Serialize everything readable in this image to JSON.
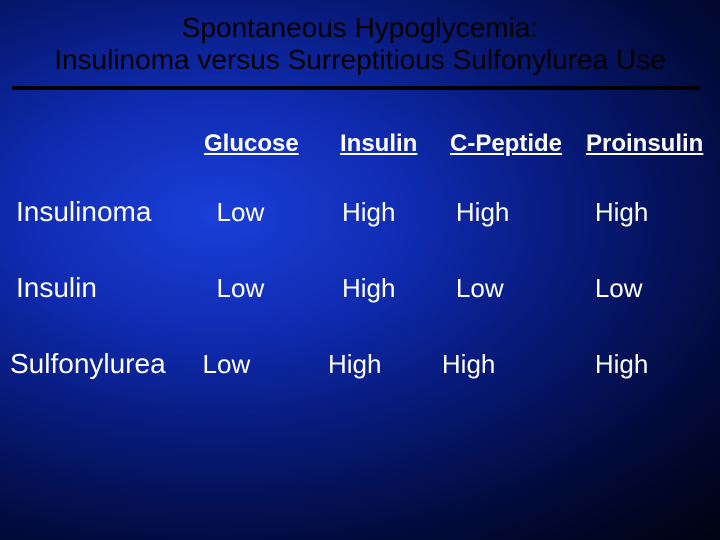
{
  "slide": {
    "title_line1": "Spontaneous Hypoglycemia:",
    "title_line2": "Insulinoma versus Surreptitious Sulfonylurea Use",
    "background_gradient_colors": [
      "#1a3fd8",
      "#0f2bb0",
      "#071a7a",
      "#020a3a",
      "#000000"
    ],
    "title_color": "#000000",
    "text_color": "#ffffff",
    "rule_color": "#000000",
    "title_fontsize": 28,
    "header_fontsize": 24,
    "body_fontsize": 26,
    "label_fontsize": 28
  },
  "table": {
    "columns": [
      "Glucose",
      "Insulin",
      "C-Peptide",
      "Proinsulin"
    ],
    "rows": [
      {
        "label": "Insulinoma",
        "values": [
          "Low",
          "High",
          "High",
          "High"
        ]
      },
      {
        "label": "Insulin",
        "values": [
          "Low",
          "High",
          "Low",
          "Low"
        ]
      },
      {
        "label": "Sulfonylurea",
        "values": [
          "Low",
          "High",
          "High",
          "High"
        ]
      }
    ]
  }
}
